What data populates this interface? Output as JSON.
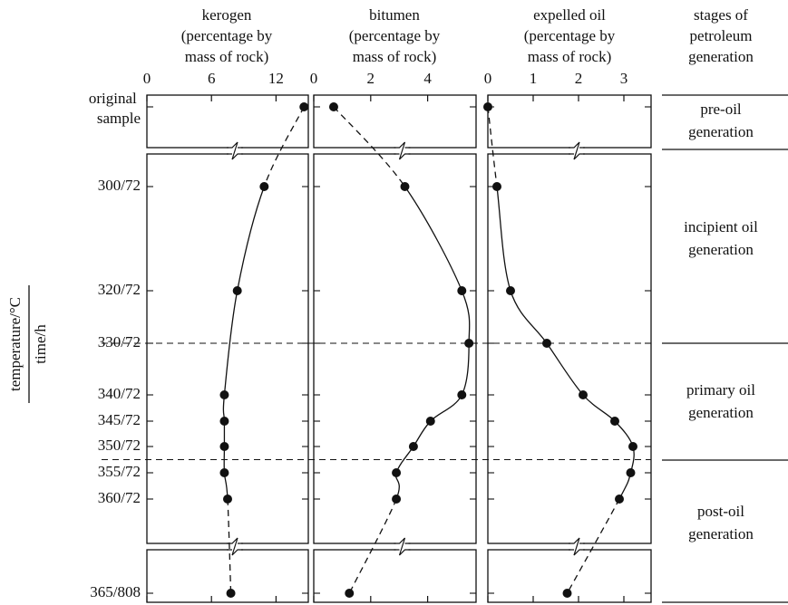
{
  "y_axis": {
    "numerator": "temperature/°C",
    "denominator": "time/h",
    "categories": [
      "original sample",
      "300/72",
      "320/72",
      "330/72",
      "340/72",
      "345/72",
      "350/72",
      "355/72",
      "360/72",
      "365/808"
    ]
  },
  "chart_data": [
    {
      "type": "line",
      "title": "kerogen",
      "xlabel_lines": [
        "(percentage by",
        "mass of rock)"
      ],
      "color": "#111",
      "xlim": [
        0,
        15
      ],
      "xticks": [
        0,
        6,
        12
      ],
      "values": [
        14.6,
        10.9,
        8.4,
        null,
        7.2,
        7.2,
        7.2,
        7.2,
        7.5,
        7.8
      ]
    },
    {
      "type": "line",
      "title": "bitumen",
      "xlabel_lines": [
        "(percentage by",
        "mass of rock)"
      ],
      "color": "#111",
      "xlim": [
        0,
        5.7
      ],
      "xticks": [
        0,
        2,
        4
      ],
      "values": [
        0.7,
        3.2,
        5.2,
        5.45,
        5.2,
        4.1,
        3.5,
        2.9,
        2.9,
        1.25
      ]
    },
    {
      "type": "line",
      "title": "expelled oil",
      "xlabel_lines": [
        "(percentage by",
        "mass of rock)"
      ],
      "color": "#111",
      "xlim": [
        0,
        3.6
      ],
      "xticks": [
        0,
        1,
        2,
        3
      ],
      "values": [
        0,
        0.2,
        0.5,
        1.3,
        2.1,
        2.8,
        3.2,
        3.15,
        2.9,
        1.75
      ]
    }
  ],
  "stages": {
    "title_lines": [
      "stages of",
      "petroleum",
      "generation"
    ],
    "labels": [
      [
        "pre-oil",
        "generation"
      ],
      [
        "incipient oil",
        "generation"
      ],
      [
        "primary oil",
        "generation"
      ],
      [
        "post-oil",
        "generation"
      ]
    ]
  }
}
